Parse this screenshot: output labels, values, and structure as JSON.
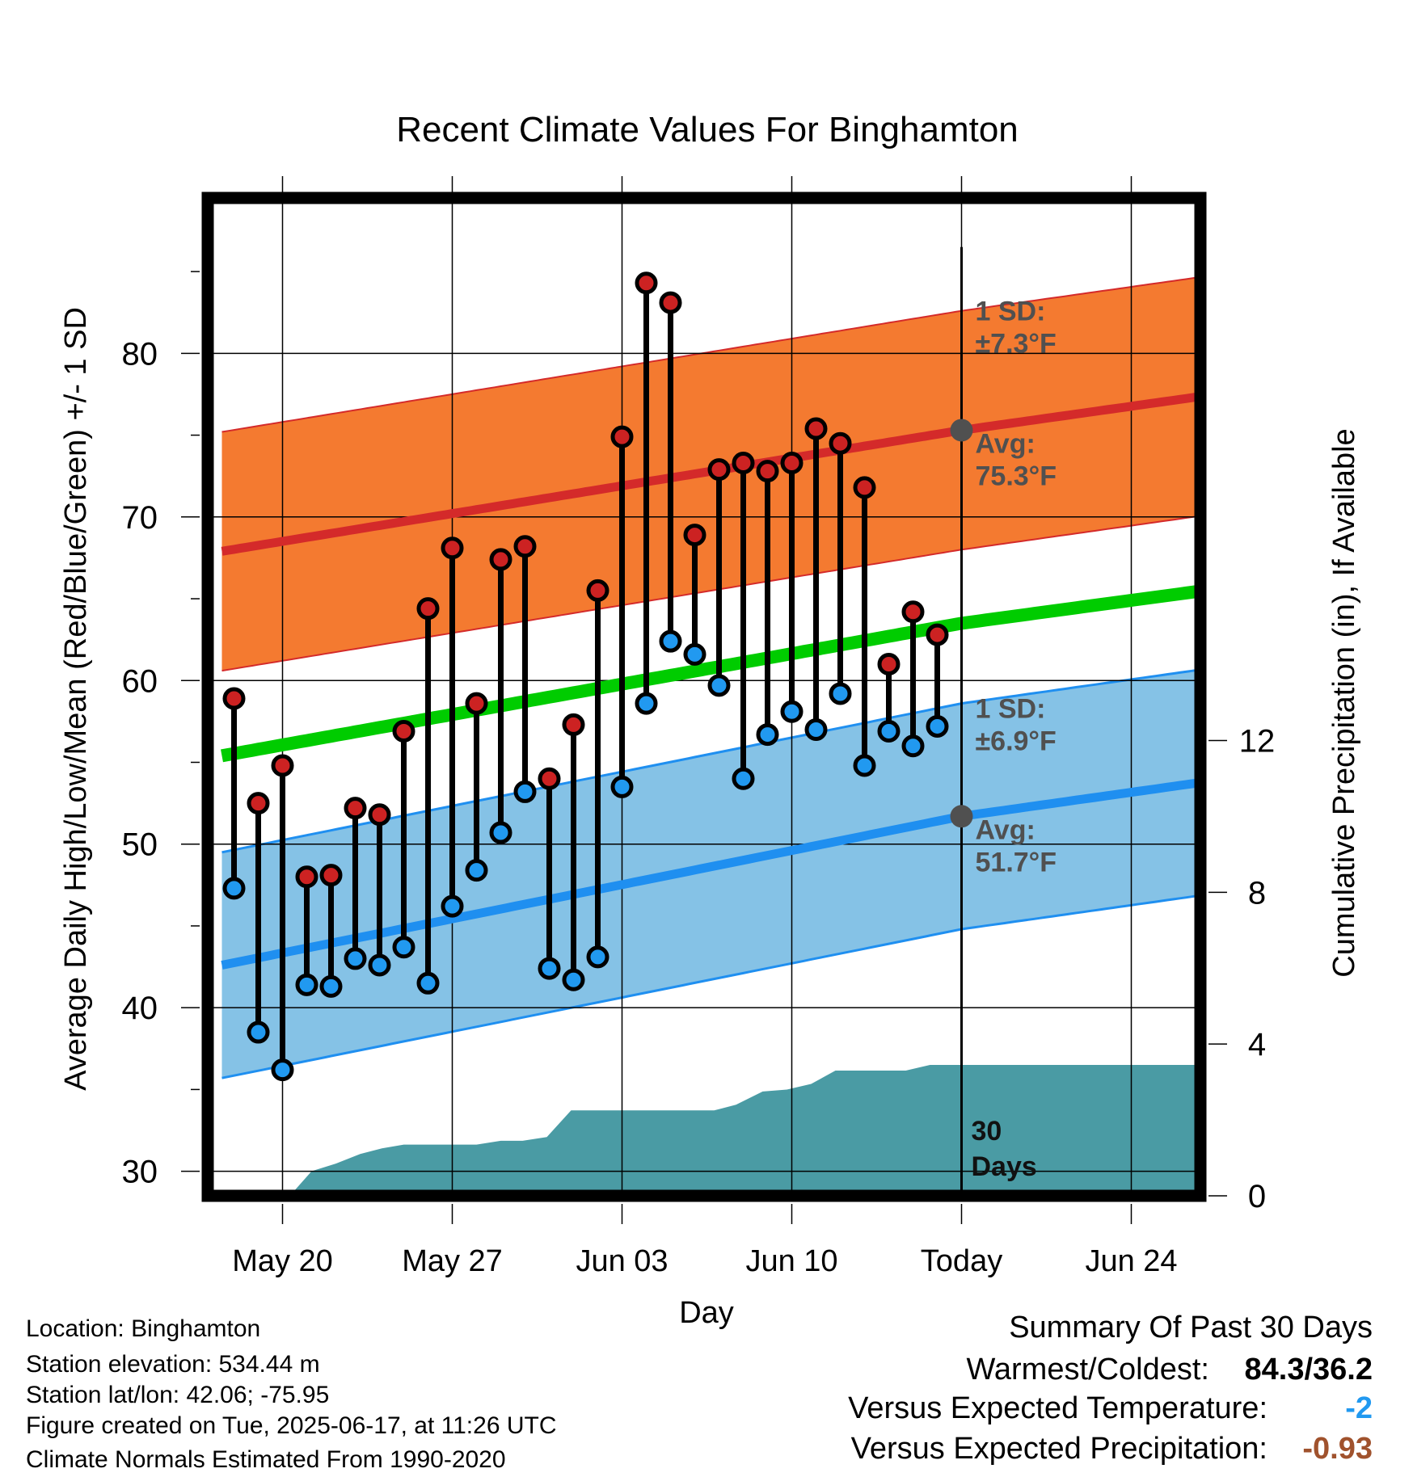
{
  "chart_data": {
    "type": "line",
    "title": "Recent Climate Values For Binghamton",
    "xlabel": "Day",
    "ylabel": "Average Daily High/Low/Mean (Red/Blue/Green) +/- 1 SD",
    "y2label": "Cumulative Precipitation (in), If Available",
    "ylim": [
      28.5,
      89.5
    ],
    "y2lim": [
      0,
      26.3
    ],
    "xlim": [
      0,
      43
    ],
    "x_ticks": [
      {
        "x": 3,
        "label": "May 20"
      },
      {
        "x": 10,
        "label": "May 27"
      },
      {
        "x": 17,
        "label": "Jun 03"
      },
      {
        "x": 24,
        "label": "Jun 10"
      },
      {
        "x": 31,
        "label": "Today"
      },
      {
        "x": 38,
        "label": "Jun 24"
      }
    ],
    "y_ticks": [
      30,
      40,
      50,
      60,
      70,
      80
    ],
    "y_minor_ticks": [
      35,
      45,
      55,
      65,
      75,
      85
    ],
    "y2_ticks": [
      0,
      4,
      8,
      12
    ],
    "today_x": 31,
    "today_line_top_y": 86.5,
    "precip_label": [
      "30",
      "Days"
    ],
    "colors": {
      "high_band": "#f47a30",
      "high_band_edge": "#d42a2a",
      "high_avg": "#d42a2a",
      "low_band": "#85c2e6",
      "low_band_edge": "#1f8ff0",
      "low_avg": "#1f8ff0",
      "mean": "#00cc00",
      "precip": "#4a9ba4",
      "high_dot": "#cc2222",
      "low_dot": "#2199f0",
      "annot": "#505050",
      "avg_marker": "#505050"
    },
    "normals": {
      "x": [
        0.5,
        31,
        41.5
      ],
      "high_avg": [
        67.9,
        75.3,
        77.5
      ],
      "high_sd": 7.3,
      "mean_avg": [
        55.4,
        63.5,
        65.6
      ],
      "low_avg": [
        42.6,
        51.7,
        53.9
      ],
      "low_sd": 6.9
    },
    "annotations": {
      "high_sd_label": [
        "1 SD:",
        "±7.3°F"
      ],
      "high_avg_label": [
        "Avg:",
        "75.3°F"
      ],
      "low_sd_label": [
        "1 SD:",
        "±6.9°F"
      ],
      "low_avg_label": [
        "Avg:",
        "51.7°F"
      ]
    },
    "daily": {
      "x": [
        1,
        2,
        3,
        4,
        5,
        6,
        7,
        8,
        9,
        10,
        11,
        12,
        13,
        14,
        15,
        16,
        17,
        18,
        19,
        20,
        21,
        22,
        23,
        24,
        25,
        26,
        27,
        28,
        29,
        30
      ],
      "high": [
        58.9,
        52.5,
        54.8,
        48.0,
        48.1,
        52.2,
        51.8,
        56.9,
        64.4,
        68.1,
        58.6,
        67.4,
        68.2,
        54.0,
        57.3,
        65.5,
        74.9,
        84.3,
        83.1,
        68.9,
        72.9,
        73.3,
        72.8,
        73.3,
        75.4,
        74.5,
        71.8,
        61.0,
        64.2,
        62.8
      ],
      "low": [
        47.3,
        38.5,
        36.2,
        41.4,
        41.3,
        43.0,
        42.6,
        43.7,
        41.5,
        46.2,
        48.4,
        50.7,
        53.2,
        42.4,
        41.7,
        43.1,
        53.5,
        58.6,
        62.4,
        61.6,
        59.7,
        54.0,
        56.7,
        58.1,
        57.0,
        59.2,
        54.8,
        56.9,
        56.0,
        57.2
      ]
    },
    "precip": {
      "x": [
        3.3,
        4.2,
        5.2,
        6.2,
        7.1,
        8.0,
        9.0,
        10.0,
        11.0,
        12.0,
        12.9,
        13.9,
        14.9,
        15.9,
        16.8,
        17.8,
        18.8,
        19.8,
        20.8,
        21.7,
        22.8,
        23.8,
        24.8,
        25.8,
        26.7,
        27.7,
        28.7,
        29.7,
        30.6,
        31.6,
        41.6
      ],
      "value": [
        0.0,
        0.65,
        0.85,
        1.1,
        1.25,
        1.35,
        1.35,
        1.35,
        1.35,
        1.45,
        1.45,
        1.55,
        2.25,
        2.25,
        2.25,
        2.25,
        2.25,
        2.25,
        2.25,
        2.4,
        2.75,
        2.8,
        2.95,
        3.3,
        3.3,
        3.3,
        3.3,
        3.45,
        3.45,
        3.45,
        3.45
      ]
    }
  },
  "footer": {
    "location": "Location: Binghamton",
    "elevation": "Station elevation: 534.44 m",
    "latlon": "Station lat/lon: 42.06; -75.95",
    "created": "Figure created on Tue, 2025-06-17, at 11:26 UTC",
    "normals": "Climate Normals Estimated From 1990-2020"
  },
  "summary": {
    "heading": "Summary Of Past 30 Days",
    "warmest_label": "Warmest/Coldest:",
    "warmest_value": "84.3/36.2",
    "temp_label": "Versus Expected Temperature:",
    "temp_value": "-2",
    "temp_color": "#2199f0",
    "precip_label": "Versus Expected Precipitation:",
    "precip_value": "-0.93",
    "precip_color": "#a0522d"
  }
}
